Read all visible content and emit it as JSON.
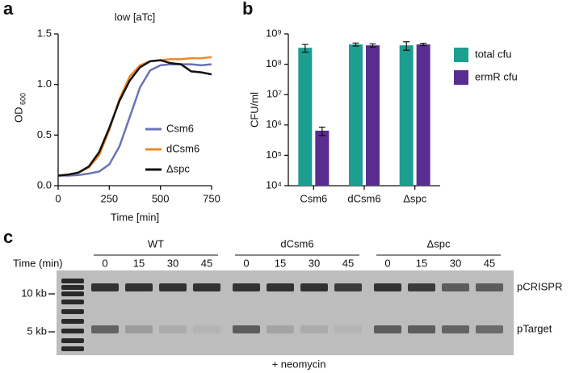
{
  "chart_data": [
    {
      "type": "line",
      "panel_label": "a",
      "title": "low [aTc]",
      "ylabel": "OD",
      "ylabel_subscript": "600",
      "xlabel": "Time [min]",
      "x": [
        0,
        50,
        100,
        150,
        200,
        250,
        300,
        350,
        400,
        450,
        500,
        550,
        600,
        650,
        700,
        750
      ],
      "series": [
        {
          "name": "Csm6",
          "color": "#6b72b8",
          "values": [
            0.1,
            0.1,
            0.105,
            0.12,
            0.14,
            0.21,
            0.39,
            0.68,
            0.97,
            1.14,
            1.19,
            1.2,
            1.2,
            1.2,
            1.19,
            1.2
          ]
        },
        {
          "name": "dCsm6",
          "color": "#f0882a",
          "values": [
            0.1,
            0.11,
            0.13,
            0.18,
            0.3,
            0.55,
            0.86,
            1.08,
            1.19,
            1.23,
            1.24,
            1.25,
            1.25,
            1.26,
            1.26,
            1.27
          ]
        },
        {
          "name": "Δspc",
          "color": "#111111",
          "values": [
            0.1,
            0.11,
            0.13,
            0.19,
            0.33,
            0.57,
            0.84,
            1.04,
            1.17,
            1.23,
            1.24,
            1.21,
            1.2,
            1.13,
            1.12,
            1.1
          ]
        }
      ],
      "xlim": [
        0,
        750
      ],
      "xticks": [
        0,
        250,
        500,
        750
      ],
      "ylim": [
        0,
        1.5
      ],
      "yticks": [
        {
          "value": 0,
          "label": "0.0"
        },
        0.5,
        {
          "value": 1,
          "label": "1.0"
        },
        1.5
      ],
      "legend": "lower right"
    },
    {
      "type": "bar",
      "panel_label": "b",
      "ylabel": "CFU/ml",
      "log_scale": true,
      "categories": [
        "Csm6",
        "dCsm6",
        "Δspc"
      ],
      "series": [
        {
          "name": "total cfu",
          "color": "#1c9e90",
          "values": [
            350000000,
            450000000,
            420000000
          ],
          "errors": [
            100000000,
            50000000,
            130000000
          ]
        },
        {
          "name": "ermR cfu",
          "color": "#5a2d90",
          "values": [
            650000,
            420000000,
            450000000
          ],
          "errors": [
            200000,
            50000000,
            40000000
          ]
        }
      ],
      "ylim": [
        10000,
        1000000000
      ],
      "yticks": [
        {
          "value": 10000,
          "label": "10⁴"
        },
        {
          "value": 100000,
          "label": "10⁵"
        },
        {
          "value": 1000000,
          "label": "10⁶"
        },
        {
          "value": 10000000,
          "label": "10⁷"
        },
        {
          "value": 100000000,
          "label": "10⁸"
        },
        {
          "value": 1000000000,
          "label": "10⁹"
        }
      ],
      "legend": "right"
    }
  ],
  "gel": {
    "panel_label": "c",
    "time_label": "Time (min)",
    "groups": [
      {
        "name": "WT",
        "times": [
          "0",
          "15",
          "30",
          "45"
        ]
      },
      {
        "name": "dCsm6",
        "times": [
          "0",
          "15",
          "30",
          "45"
        ]
      },
      {
        "name": "Δspc",
        "times": [
          "0",
          "15",
          "30",
          "45"
        ]
      }
    ],
    "markers": [
      "10 kb",
      "5 kb"
    ],
    "bands": [
      "pCRISPR",
      "pTarget"
    ],
    "treatment": "+ neomycin"
  }
}
